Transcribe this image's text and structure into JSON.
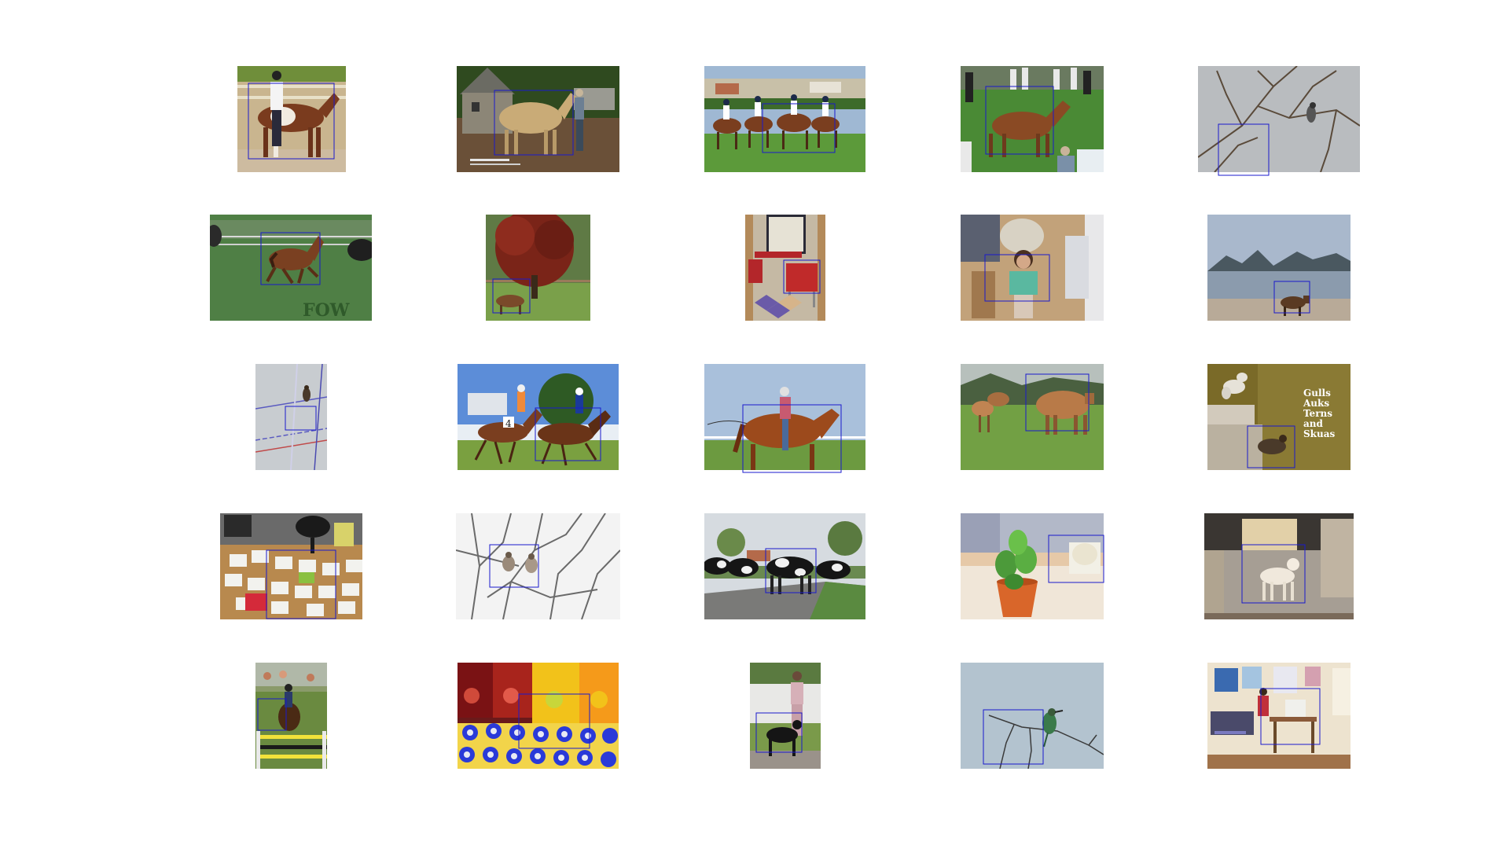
{
  "figure": {
    "background": "#ffffff",
    "box_color": "#1a1acc",
    "grid": {
      "rows": 5,
      "cols": 5
    },
    "overlay_text": {
      "gulls_sign": [
        "Gulls",
        "Auks",
        "Terns",
        "and",
        "Skuas"
      ],
      "fow_watermark": "FOW",
      "jersey_number": "4"
    },
    "thumbnails": [
      {
        "name": "horse-person-paddock",
        "scene": "brown and white paint horse held by a person at a fence"
      },
      {
        "name": "palomino-stone-house",
        "scene": "palomino horse beside a stone cottage"
      },
      {
        "name": "riders-on-field",
        "scene": "children riding horses on a grass field"
      },
      {
        "name": "horse-crowd-grass",
        "scene": "brown horse led through a crowd on grass"
      },
      {
        "name": "bird-bare-branches",
        "scene": "small bird on bare branches"
      },
      {
        "name": "pony-running",
        "scene": "brown pony running on grass"
      },
      {
        "name": "red-tree-horse",
        "scene": "red-leaf tree with a horse beneath"
      },
      {
        "name": "kitchen-chairs",
        "scene": "kitchen with red chairs"
      },
      {
        "name": "child-dentist-chair",
        "scene": "child in a dental chair"
      },
      {
        "name": "cow-lakeside",
        "scene": "cow standing by a lake with mountains"
      },
      {
        "name": "dog-on-court",
        "scene": "dog on a sports court seen from above"
      },
      {
        "name": "horse-race",
        "scene": "jockeys racing horses"
      },
      {
        "name": "woman-riding-horse",
        "scene": "woman riding a chestnut horse"
      },
      {
        "name": "cows-field",
        "scene": "cows on a green field"
      },
      {
        "name": "gulls-museum-sign",
        "scene": "museum display of gulls and a bird"
      },
      {
        "name": "papers-on-floor",
        "scene": "papers spread on a carpet floor"
      },
      {
        "name": "birds-in-branches",
        "scene": "two birds in bare branches"
      },
      {
        "name": "cows-crossing-road",
        "scene": "black and white cows crossing a road"
      },
      {
        "name": "potted-plant",
        "scene": "succulent in an orange pot next to a cup"
      },
      {
        "name": "dog-living-room",
        "scene": "white dog in a living room"
      },
      {
        "name": "horse-jumping",
        "scene": "rider jumping a horse over a fence"
      },
      {
        "name": "drink-bottles",
        "scene": "rows of drink bottles"
      },
      {
        "name": "woman-with-dog",
        "scene": "woman walking a black dog"
      },
      {
        "name": "bird-on-twig",
        "scene": "bee-eater bird perched on a twig"
      },
      {
        "name": "room-with-desk",
        "scene": "person at a desk in a room"
      }
    ]
  }
}
